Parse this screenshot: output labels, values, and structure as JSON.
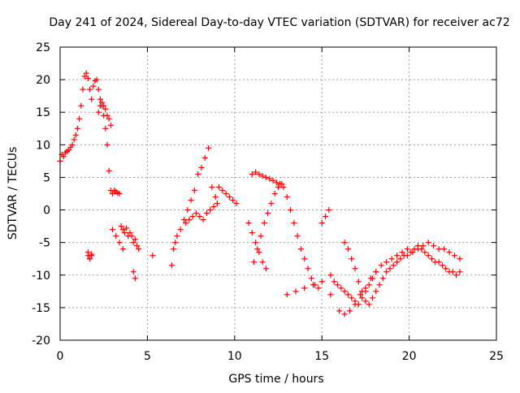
{
  "chart_data": {
    "type": "scatter",
    "title": "Day 241 of 2024, Sidereal Day-to-day VTEC variation (SDTVAR) for receiver ac72",
    "xlabel": "GPS time / hours",
    "ylabel": "SDTVAR / TECUs",
    "xlim": [
      0,
      25
    ],
    "ylim": [
      -20,
      25
    ],
    "xticks": [
      0,
      5,
      10,
      15,
      20,
      25
    ],
    "yticks": [
      -20,
      -15,
      -10,
      -5,
      0,
      5,
      10,
      15,
      20,
      25
    ],
    "grid": true,
    "marker": "+",
    "color": "#ff0000",
    "series": [
      {
        "name": "SDTVAR",
        "x": [
          0.0,
          0.1,
          0.2,
          0.3,
          0.4,
          0.5,
          0.6,
          0.7,
          0.8,
          0.9,
          1.0,
          1.1,
          1.2,
          1.3,
          1.4,
          1.5,
          1.6,
          1.7,
          1.8,
          1.9,
          2.0,
          2.1,
          2.2,
          2.3,
          2.4,
          2.5,
          2.6,
          2.7,
          2.8,
          2.9,
          3.0,
          3.1,
          3.2,
          3.3,
          3.4,
          3.5,
          3.6,
          3.7,
          3.8,
          3.9,
          4.0,
          4.1,
          4.2,
          4.3,
          4.4,
          4.5,
          1.6,
          1.7,
          1.8,
          2.2,
          2.3,
          2.4,
          2.5,
          2.6,
          2.7,
          2.8,
          2.9,
          3.0,
          3.2,
          3.4,
          3.6,
          1.6,
          1.7,
          1.8,
          4.2,
          4.3,
          5.3,
          6.4,
          6.5,
          6.6,
          6.7,
          6.9,
          7.1,
          7.3,
          7.5,
          7.7,
          7.9,
          8.1,
          8.3,
          8.5,
          8.7,
          8.9,
          9.1,
          9.3,
          9.5,
          9.7,
          9.9,
          10.1,
          7.2,
          7.4,
          7.6,
          7.8,
          8.0,
          8.2,
          8.4,
          8.6,
          8.8,
          9.0,
          11.0,
          11.2,
          11.4,
          11.6,
          11.8,
          12.0,
          12.2,
          12.4,
          12.6,
          12.8,
          13.0,
          13.2,
          13.4,
          13.6,
          13.8,
          14.0,
          14.2,
          14.4,
          14.6,
          14.8,
          15.0,
          15.2,
          15.4,
          11.1,
          11.3,
          11.5,
          11.7,
          11.9,
          12.1,
          12.3,
          12.5,
          12.7,
          10.8,
          11.0,
          11.2,
          11.4,
          11.6,
          11.8,
          13.0,
          13.5,
          14.0,
          14.5,
          15.0,
          15.5,
          16.0,
          16.3,
          16.6,
          16.9,
          17.2,
          17.5,
          17.8,
          18.1,
          18.4,
          18.7,
          19.0,
          19.3,
          19.6,
          19.9,
          20.2,
          20.5,
          20.8,
          21.1,
          21.4,
          21.7,
          22.0,
          22.3,
          22.6,
          22.9,
          15.5,
          15.7,
          15.9,
          16.1,
          16.3,
          16.5,
          16.7,
          16.9,
          17.1,
          17.3,
          17.5,
          17.7,
          17.9,
          18.1,
          16.3,
          16.5,
          16.7,
          16.9,
          17.1,
          17.3,
          17.5,
          17.7,
          17.9,
          18.1,
          18.3,
          18.5,
          18.7,
          18.9,
          19.1,
          19.3,
          19.5,
          19.7,
          19.9,
          20.1,
          20.3,
          20.5,
          20.7,
          20.9,
          21.1,
          21.3,
          21.5,
          21.7,
          21.9,
          22.1,
          22.3,
          22.5,
          22.7,
          22.9
        ],
        "y": [
          7.5,
          8.5,
          8.2,
          8.8,
          9.0,
          9.2,
          9.6,
          10.0,
          10.8,
          11.5,
          12.5,
          14.0,
          16.0,
          18.5,
          20.5,
          21.0,
          20.2,
          18.5,
          17.0,
          19.0,
          19.8,
          20.0,
          18.5,
          17.0,
          16.0,
          14.5,
          12.5,
          10.0,
          6.0,
          3.0,
          2.5,
          3.0,
          2.8,
          2.6,
          2.5,
          -2.5,
          -3.0,
          -3.5,
          -2.8,
          -4.0,
          -3.5,
          -4.0,
          -5.0,
          -4.5,
          -5.5,
          -6.0,
          -6.5,
          -7.5,
          -7.0,
          15.0,
          16.0,
          16.5,
          16.0,
          15.5,
          14.5,
          14.0,
          13.0,
          -3.0,
          -4.0,
          -5.0,
          -6.0,
          -7.0,
          -7.5,
          -6.8,
          -9.5,
          -10.5,
          -7.0,
          -8.5,
          -6.0,
          -5.0,
          -4.0,
          -3.0,
          -1.5,
          0.0,
          1.5,
          3.0,
          5.5,
          6.5,
          8.0,
          9.5,
          3.5,
          2.0,
          3.5,
          3.0,
          2.5,
          2.0,
          1.5,
          1.0,
          -2.0,
          -1.5,
          -1.0,
          -0.5,
          -1.0,
          -1.5,
          -0.5,
          0.0,
          0.5,
          1.0,
          5.5,
          5.8,
          5.5,
          5.2,
          5.0,
          4.8,
          4.5,
          4.2,
          4.0,
          3.5,
          2.0,
          0.0,
          -2.0,
          -4.0,
          -6.0,
          -7.5,
          -9.0,
          -10.5,
          -11.5,
          -12.0,
          -2.0,
          -1.0,
          0.0,
          -8.0,
          -6.0,
          -4.0,
          -2.0,
          -0.5,
          1.0,
          2.5,
          3.5,
          4.0,
          -2.0,
          -3.5,
          -5.0,
          -6.5,
          -8.0,
          -9.0,
          -13.0,
          -12.5,
          -12.0,
          -11.5,
          -11.0,
          -13.0,
          -15.5,
          -16.0,
          -15.5,
          -14.5,
          -13.0,
          -12.0,
          -10.5,
          -9.5,
          -8.5,
          -8.0,
          -7.5,
          -7.0,
          -6.5,
          -6.0,
          -6.5,
          -6.0,
          -5.5,
          -5.0,
          -5.5,
          -6.0,
          -6.0,
          -6.5,
          -7.0,
          -7.5,
          -10.0,
          -11.0,
          -11.5,
          -12.0,
          -12.5,
          -13.0,
          -13.5,
          -14.0,
          -14.5,
          -13.5,
          -12.5,
          -11.5,
          -10.5,
          -9.5,
          -5.0,
          -6.0,
          -7.5,
          -9.0,
          -11.0,
          -12.5,
          -14.0,
          -14.5,
          -13.5,
          -12.5,
          -11.5,
          -10.5,
          -9.5,
          -9.0,
          -8.5,
          -8.0,
          -7.5,
          -7.0,
          -7.0,
          -6.5,
          -6.0,
          -5.5,
          -6.0,
          -6.5,
          -7.0,
          -7.5,
          -8.0,
          -8.0,
          -8.5,
          -9.0,
          -9.5,
          -9.5,
          -10.0,
          -9.5
        ]
      }
    ]
  }
}
